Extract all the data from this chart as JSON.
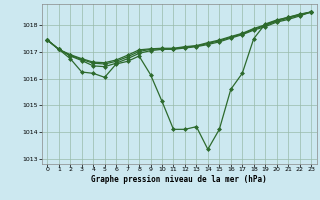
{
  "bg_color": "#cce8f0",
  "line_color": "#2d6a2d",
  "grid_color": "#99bbaa",
  "title": "Graphe pression niveau de la mer (hPa)",
  "xlim": [
    -0.5,
    23.5
  ],
  "ylim": [
    1012.8,
    1018.8
  ],
  "yticks": [
    1013,
    1014,
    1015,
    1016,
    1017,
    1018
  ],
  "xticks": [
    0,
    1,
    2,
    3,
    4,
    5,
    6,
    7,
    8,
    9,
    10,
    11,
    12,
    13,
    14,
    15,
    16,
    17,
    18,
    19,
    20,
    21,
    22,
    23
  ],
  "line1_x": [
    0,
    1,
    2,
    3,
    4,
    5,
    6,
    7,
    8,
    9,
    10,
    11,
    12,
    13,
    14,
    15,
    16,
    17,
    18,
    19,
    20,
    21,
    22,
    23
  ],
  "line1_y": [
    1017.45,
    1017.1,
    1016.75,
    1016.25,
    1016.2,
    1016.05,
    1016.55,
    1016.65,
    1016.85,
    1016.15,
    1015.15,
    1014.1,
    1014.1,
    1014.2,
    1013.35,
    1014.1,
    1015.6,
    1016.2,
    1017.5,
    1018.05,
    1018.2,
    1018.3,
    1018.42,
    1018.5
  ],
  "line2_x": [
    0,
    1,
    2,
    3,
    4,
    5,
    6,
    7,
    8,
    9,
    10,
    11,
    12,
    13,
    14,
    15,
    16,
    17,
    18,
    19,
    20,
    21,
    22,
    23
  ],
  "line2_y": [
    1017.45,
    1017.1,
    1016.85,
    1016.68,
    1016.48,
    1016.45,
    1016.58,
    1016.75,
    1016.95,
    1017.05,
    1017.1,
    1017.1,
    1017.15,
    1017.2,
    1017.28,
    1017.38,
    1017.52,
    1017.65,
    1017.82,
    1017.95,
    1018.12,
    1018.22,
    1018.35,
    1018.5
  ],
  "line3_x": [
    0,
    1,
    2,
    3,
    4,
    5,
    6,
    7,
    8,
    9,
    10,
    11,
    12,
    13,
    14,
    15,
    16,
    17,
    18,
    19,
    20,
    21,
    22,
    23
  ],
  "line3_y": [
    1017.45,
    1017.1,
    1016.88,
    1016.72,
    1016.58,
    1016.55,
    1016.65,
    1016.82,
    1017.02,
    1017.1,
    1017.12,
    1017.12,
    1017.18,
    1017.22,
    1017.32,
    1017.42,
    1017.55,
    1017.68,
    1017.85,
    1018.0,
    1018.15,
    1018.27,
    1018.38,
    1018.5
  ],
  "line4_x": [
    0,
    1,
    2,
    3,
    4,
    5,
    6,
    7,
    8,
    9,
    10,
    11,
    12,
    13,
    14,
    15,
    16,
    17,
    18,
    19,
    20,
    21,
    22,
    23
  ],
  "line4_y": [
    1017.45,
    1017.1,
    1016.9,
    1016.75,
    1016.62,
    1016.6,
    1016.7,
    1016.88,
    1017.08,
    1017.12,
    1017.14,
    1017.14,
    1017.2,
    1017.24,
    1017.35,
    1017.45,
    1017.58,
    1017.7,
    1017.88,
    1018.02,
    1018.18,
    1018.3,
    1018.4,
    1018.5
  ]
}
